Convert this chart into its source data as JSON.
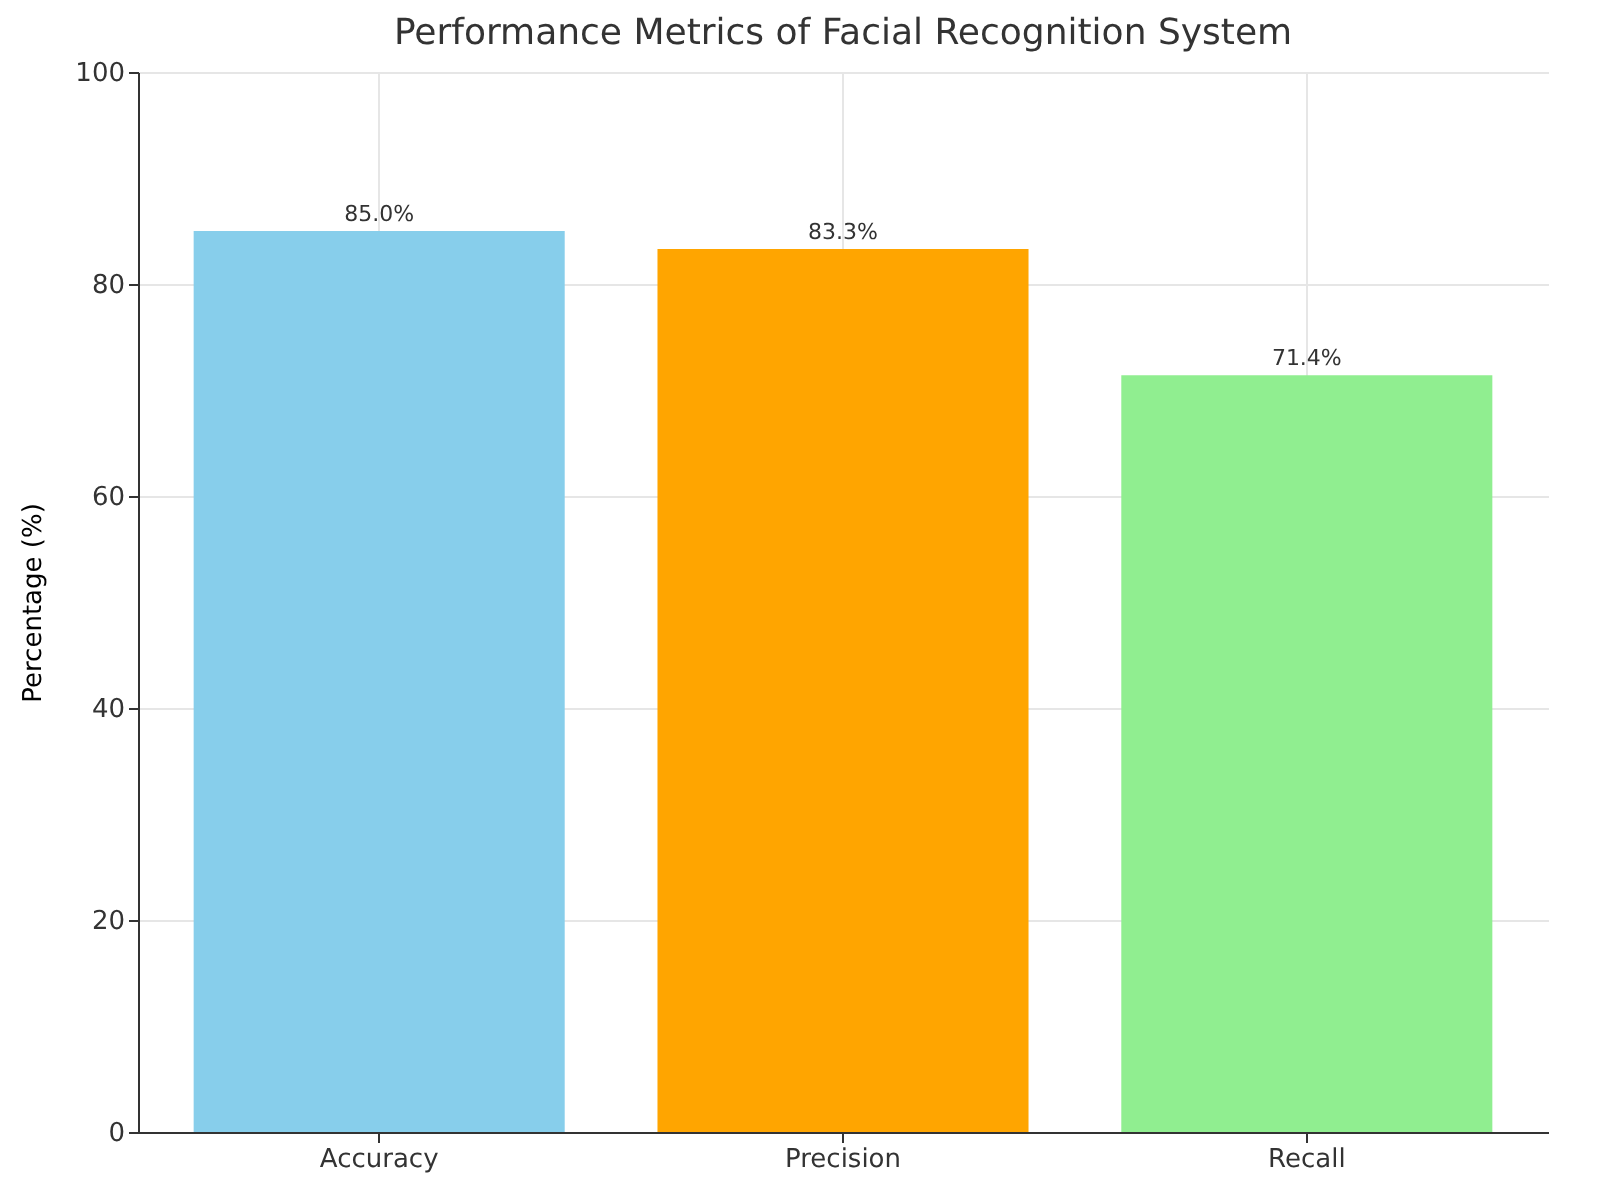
{
  "chart_data": {
    "type": "bar",
    "title": "Performance Metrics of Facial Recognition System",
    "ylabel": "Percentage (%)",
    "categories": [
      "Accuracy",
      "Precision",
      "Recall"
    ],
    "values": [
      85.0,
      83.3,
      71.4
    ],
    "colors": [
      "#87ceeb",
      "#ffa500",
      "#90ee90"
    ],
    "value_labels": [
      "85.0%",
      "83.3%",
      "71.4%"
    ],
    "ylim": [
      0,
      100
    ],
    "yticks": [
      0,
      20,
      40,
      60,
      80,
      100
    ],
    "grid": true
  }
}
